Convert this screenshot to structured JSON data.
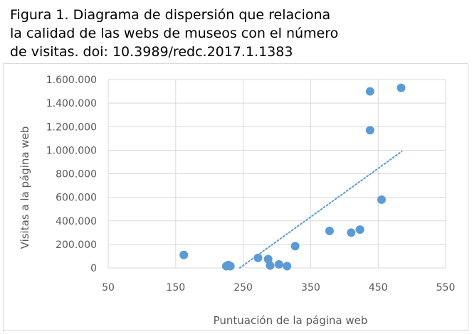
{
  "figure": {
    "caption_lines": [
      "Figura 1. Diagrama de dispersión que relaciona",
      "la calidad de las webs de museos con el número",
      "de visitas. doi: 10.3989/redc.2017.1.1383"
    ]
  },
  "chart_data": {
    "type": "scatter",
    "title": "",
    "xlabel": "Puntuación de la página web",
    "ylabel": "Visitas a la página web",
    "xlim": [
      50,
      550
    ],
    "ylim": [
      0,
      1600000
    ],
    "x_ticks": [
      50,
      150,
      250,
      350,
      450,
      550
    ],
    "x_tick_labels": [
      "50",
      "150",
      "250",
      "350",
      "450",
      "550"
    ],
    "y_ticks": [
      0,
      200000,
      400000,
      600000,
      800000,
      1000000,
      1200000,
      1400000,
      1600000
    ],
    "y_tick_labels": [
      "0",
      "200.000",
      "400.000",
      "600.000",
      "800.000",
      "1.000.000",
      "1.200.000",
      "1.400.000",
      "1.600.000"
    ],
    "grid": {
      "x": true,
      "y": true
    },
    "legend": "none",
    "marker_color": "#5b9bd5",
    "trendline": {
      "type": "linear",
      "style": "dotted",
      "color": "#5b9bd5",
      "x": [
        245,
        485
      ],
      "y": [
        0,
        990000
      ]
    },
    "series": [
      {
        "points": [
          {
            "x": 162,
            "y": 110000
          },
          {
            "x": 225,
            "y": 15000
          },
          {
            "x": 228,
            "y": 25000
          },
          {
            "x": 231,
            "y": 15000
          },
          {
            "x": 272,
            "y": 85000
          },
          {
            "x": 287,
            "y": 75000
          },
          {
            "x": 290,
            "y": 20000
          },
          {
            "x": 303,
            "y": 30000
          },
          {
            "x": 315,
            "y": 15000
          },
          {
            "x": 327,
            "y": 185000
          },
          {
            "x": 378,
            "y": 315000
          },
          {
            "x": 410,
            "y": 300000
          },
          {
            "x": 423,
            "y": 325000
          },
          {
            "x": 438,
            "y": 1500000
          },
          {
            "x": 438,
            "y": 1170000
          },
          {
            "x": 455,
            "y": 580000
          },
          {
            "x": 484,
            "y": 1530000
          }
        ]
      }
    ]
  }
}
